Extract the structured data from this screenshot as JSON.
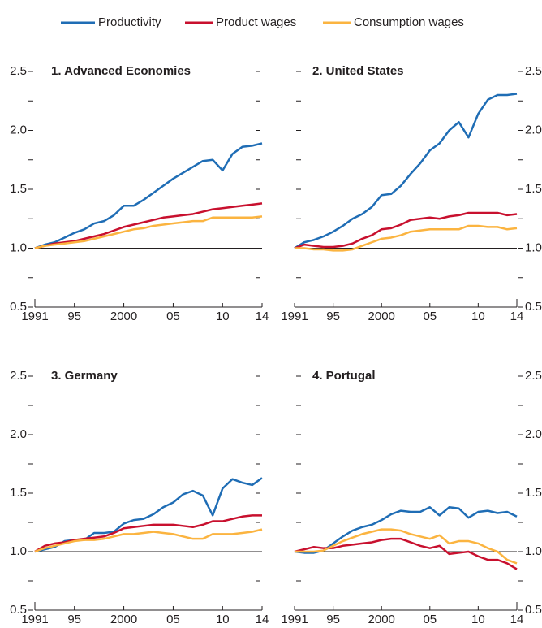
{
  "chart_data": [
    {
      "type": "line",
      "title": "1. Advanced Economies",
      "y_axis_side": "left",
      "x": [
        1991,
        1992,
        1993,
        1994,
        1995,
        1996,
        1997,
        1998,
        1999,
        2000,
        2001,
        2002,
        2003,
        2004,
        2005,
        2006,
        2007,
        2008,
        2009,
        2010,
        2011,
        2012,
        2013,
        2014
      ],
      "series": [
        {
          "name": "Productivity",
          "color": "#1f6db5",
          "values": [
            1.0,
            1.03,
            1.05,
            1.09,
            1.13,
            1.16,
            1.21,
            1.23,
            1.28,
            1.36,
            1.36,
            1.41,
            1.47,
            1.53,
            1.59,
            1.64,
            1.69,
            1.74,
            1.75,
            1.66,
            1.8,
            1.86,
            1.87,
            1.89
          ]
        },
        {
          "name": "Product wages",
          "color": "#c8102e",
          "values": [
            1.0,
            1.02,
            1.04,
            1.05,
            1.06,
            1.08,
            1.1,
            1.12,
            1.15,
            1.18,
            1.2,
            1.22,
            1.24,
            1.26,
            1.27,
            1.28,
            1.29,
            1.31,
            1.33,
            1.34,
            1.35,
            1.36,
            1.37,
            1.38
          ]
        },
        {
          "name": "Consumption wages",
          "color": "#fbb440",
          "values": [
            1.0,
            1.02,
            1.03,
            1.04,
            1.05,
            1.06,
            1.08,
            1.1,
            1.12,
            1.14,
            1.16,
            1.17,
            1.19,
            1.2,
            1.21,
            1.22,
            1.23,
            1.23,
            1.26,
            1.26,
            1.26,
            1.26,
            1.26,
            1.27
          ]
        }
      ],
      "xlim": [
        1991,
        2014
      ],
      "xticks": [
        1991,
        {
          "value": 1995,
          "label": "95"
        },
        2000,
        {
          "value": 2005,
          "label": "05"
        },
        {
          "value": 2010,
          "label": "10"
        },
        {
          "value": 2014,
          "label": "14"
        }
      ],
      "ylim": [
        0.5,
        2.5
      ],
      "yticks": [
        0.5,
        {
          "value": 1,
          "label": "1.0"
        },
        1.5,
        {
          "value": 2,
          "label": "2.0"
        },
        2.5
      ],
      "minor_yticks": [
        0.75,
        1.25,
        1.75,
        2.25
      ],
      "hline": 1
    },
    {
      "type": "line",
      "title": "2. United States",
      "y_axis_side": "right",
      "x": [
        1991,
        1992,
        1993,
        1994,
        1995,
        1996,
        1997,
        1998,
        1999,
        2000,
        2001,
        2002,
        2003,
        2004,
        2005,
        2006,
        2007,
        2008,
        2009,
        2010,
        2011,
        2012,
        2013,
        2014
      ],
      "series": [
        {
          "name": "Productivity",
          "color": "#1f6db5",
          "values": [
            1.0,
            1.05,
            1.07,
            1.1,
            1.14,
            1.19,
            1.25,
            1.29,
            1.35,
            1.45,
            1.46,
            1.53,
            1.63,
            1.72,
            1.83,
            1.89,
            2.0,
            2.07,
            1.94,
            2.14,
            2.26,
            2.3,
            2.3,
            2.31
          ]
        },
        {
          "name": "Product wages",
          "color": "#c8102e",
          "values": [
            1.0,
            1.03,
            1.02,
            1.01,
            1.01,
            1.02,
            1.04,
            1.08,
            1.11,
            1.16,
            1.17,
            1.2,
            1.24,
            1.25,
            1.26,
            1.25,
            1.27,
            1.28,
            1.3,
            1.3,
            1.3,
            1.3,
            1.28,
            1.29
          ]
        },
        {
          "name": "Consumption wages",
          "color": "#fbb440",
          "values": [
            1.0,
            1.0,
            0.99,
            0.99,
            0.98,
            0.98,
            0.99,
            1.02,
            1.05,
            1.08,
            1.09,
            1.11,
            1.14,
            1.15,
            1.16,
            1.16,
            1.16,
            1.16,
            1.19,
            1.19,
            1.18,
            1.18,
            1.16,
            1.17
          ]
        }
      ],
      "xlim": [
        1991,
        2014
      ],
      "xticks": [
        1991,
        {
          "value": 1995,
          "label": "95"
        },
        2000,
        {
          "value": 2005,
          "label": "05"
        },
        {
          "value": 2010,
          "label": "10"
        },
        {
          "value": 2014,
          "label": "14"
        }
      ],
      "ylim": [
        0.5,
        2.5
      ],
      "yticks": [
        0.5,
        {
          "value": 1,
          "label": "1.0"
        },
        1.5,
        {
          "value": 2,
          "label": "2.0"
        },
        2.5
      ],
      "minor_yticks": [
        0.75,
        1.25,
        1.75,
        2.25
      ],
      "hline": 1
    },
    {
      "type": "line",
      "title": "3. Germany",
      "y_axis_side": "left",
      "x": [
        1991,
        1992,
        1993,
        1994,
        1995,
        1996,
        1997,
        1998,
        1999,
        2000,
        2001,
        2002,
        2003,
        2004,
        2005,
        2006,
        2007,
        2008,
        2009,
        2010,
        2011,
        2012,
        2013,
        2014
      ],
      "series": [
        {
          "name": "Productivity",
          "color": "#1f6db5",
          "values": [
            1.0,
            1.02,
            1.04,
            1.09,
            1.1,
            1.1,
            1.16,
            1.16,
            1.17,
            1.24,
            1.27,
            1.28,
            1.32,
            1.38,
            1.42,
            1.49,
            1.52,
            1.48,
            1.31,
            1.54,
            1.62,
            1.59,
            1.57,
            1.63
          ]
        },
        {
          "name": "Product wages",
          "color": "#c8102e",
          "values": [
            1.0,
            1.05,
            1.07,
            1.08,
            1.1,
            1.11,
            1.12,
            1.13,
            1.16,
            1.2,
            1.21,
            1.22,
            1.23,
            1.23,
            1.23,
            1.22,
            1.21,
            1.23,
            1.26,
            1.26,
            1.28,
            1.3,
            1.31,
            1.31
          ]
        },
        {
          "name": "Consumption wages",
          "color": "#fbb440",
          "values": [
            1.0,
            1.03,
            1.05,
            1.07,
            1.09,
            1.1,
            1.1,
            1.11,
            1.13,
            1.15,
            1.15,
            1.16,
            1.17,
            1.16,
            1.15,
            1.13,
            1.11,
            1.11,
            1.15,
            1.15,
            1.15,
            1.16,
            1.17,
            1.19
          ]
        }
      ],
      "xlim": [
        1991,
        2014
      ],
      "xticks": [
        1991,
        {
          "value": 1995,
          "label": "95"
        },
        2000,
        {
          "value": 2005,
          "label": "05"
        },
        {
          "value": 2010,
          "label": "10"
        },
        {
          "value": 2014,
          "label": "14"
        }
      ],
      "ylim": [
        0.5,
        2.5
      ],
      "yticks": [
        0.5,
        {
          "value": 1,
          "label": "1.0"
        },
        1.5,
        {
          "value": 2,
          "label": "2.0"
        },
        2.5
      ],
      "minor_yticks": [
        0.75,
        1.25,
        1.75,
        2.25
      ],
      "hline": 1
    },
    {
      "type": "line",
      "title": "4. Portugal",
      "y_axis_side": "right",
      "x": [
        1991,
        1992,
        1993,
        1994,
        1995,
        1996,
        1997,
        1998,
        1999,
        2000,
        2001,
        2002,
        2003,
        2004,
        2005,
        2006,
        2007,
        2008,
        2009,
        2010,
        2011,
        2012,
        2013,
        2014
      ],
      "series": [
        {
          "name": "Productivity",
          "color": "#1f6db5",
          "values": [
            1.0,
            0.99,
            0.99,
            1.01,
            1.07,
            1.13,
            1.18,
            1.21,
            1.23,
            1.27,
            1.32,
            1.35,
            1.34,
            1.34,
            1.38,
            1.31,
            1.38,
            1.37,
            1.29,
            1.34,
            1.35,
            1.33,
            1.34,
            1.3
          ]
        },
        {
          "name": "Product wages",
          "color": "#c8102e",
          "values": [
            1.0,
            1.02,
            1.04,
            1.03,
            1.03,
            1.05,
            1.06,
            1.07,
            1.08,
            1.1,
            1.11,
            1.11,
            1.08,
            1.05,
            1.03,
            1.05,
            0.98,
            0.99,
            1.0,
            0.96,
            0.93,
            0.93,
            0.9,
            0.85
          ]
        },
        {
          "name": "Consumption wages",
          "color": "#fbb440",
          "values": [
            1.0,
            1.0,
            1.0,
            1.01,
            1.05,
            1.09,
            1.12,
            1.15,
            1.17,
            1.19,
            1.19,
            1.18,
            1.15,
            1.13,
            1.11,
            1.14,
            1.07,
            1.09,
            1.09,
            1.07,
            1.03,
            1.0,
            0.93,
            0.9
          ]
        }
      ],
      "xlim": [
        1991,
        2014
      ],
      "xticks": [
        1991,
        {
          "value": 1995,
          "label": "95"
        },
        2000,
        {
          "value": 2005,
          "label": "05"
        },
        {
          "value": 2010,
          "label": "10"
        },
        {
          "value": 2014,
          "label": "14"
        }
      ],
      "ylim": [
        0.5,
        2.5
      ],
      "yticks": [
        0.5,
        {
          "value": 1,
          "label": "1.0"
        },
        1.5,
        {
          "value": 2,
          "label": "2.0"
        },
        2.5
      ],
      "minor_yticks": [
        0.75,
        1.25,
        1.75,
        2.25
      ],
      "hline": 1
    }
  ]
}
